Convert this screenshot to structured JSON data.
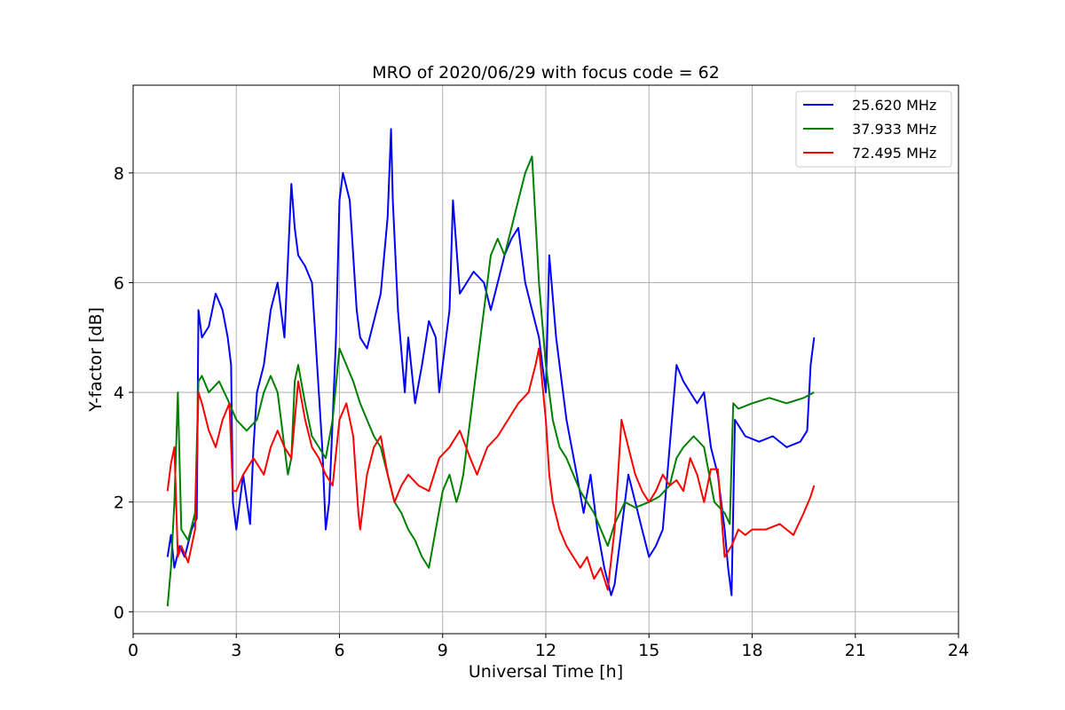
{
  "chart_data": {
    "type": "line",
    "title": "MRO of 2020/06/29 with focus code = 62",
    "xlabel": "Universal Time [h]",
    "ylabel": "Y-factor [dB]",
    "xlim": [
      0,
      24
    ],
    "ylim": [
      -0.4,
      9.6
    ],
    "xticks": [
      0,
      3,
      6,
      9,
      12,
      15,
      18,
      21,
      24
    ],
    "yticks": [
      0,
      2,
      4,
      6,
      8
    ],
    "grid": true,
    "legend_position": "top-right",
    "series": [
      {
        "name": "25.620 MHz",
        "color": "#0000ff",
        "x": [
          1.0,
          1.1,
          1.2,
          1.35,
          1.5,
          1.7,
          1.85,
          1.9,
          2.0,
          2.2,
          2.4,
          2.6,
          2.75,
          2.85,
          2.9,
          3.0,
          3.2,
          3.4,
          3.5,
          3.6,
          3.8,
          4.0,
          4.2,
          4.3,
          4.4,
          4.6,
          4.7,
          4.8,
          5.0,
          5.2,
          5.3,
          5.5,
          5.6,
          5.7,
          5.8,
          5.9,
          6.0,
          6.1,
          6.3,
          6.5,
          6.6,
          6.8,
          7.0,
          7.2,
          7.4,
          7.5,
          7.55,
          7.7,
          7.9,
          8.0,
          8.2,
          8.4,
          8.6,
          8.8,
          8.9,
          9.0,
          9.2,
          9.3,
          9.5,
          9.7,
          9.9,
          10.2,
          10.4,
          10.6,
          10.8,
          11.0,
          11.2,
          11.4,
          11.6,
          11.8,
          12.0,
          12.1,
          12.3,
          12.6,
          12.9,
          13.1,
          13.3,
          13.5,
          13.7,
          13.9,
          14.0,
          14.2,
          14.4,
          14.6,
          14.8,
          15.0,
          15.2,
          15.4,
          15.6,
          15.8,
          16.0,
          16.2,
          16.4,
          16.6,
          16.8,
          17.0,
          17.2,
          17.3,
          17.4,
          17.5,
          17.8,
          18.2,
          18.6,
          19.0,
          19.4,
          19.6,
          19.7,
          19.8
        ],
        "y": [
          1.0,
          1.4,
          0.8,
          1.2,
          1.0,
          1.5,
          1.7,
          5.5,
          5.0,
          5.2,
          5.8,
          5.5,
          5.0,
          4.5,
          2.0,
          1.5,
          2.5,
          1.6,
          3.0,
          4.0,
          4.5,
          5.5,
          6.0,
          5.5,
          5.0,
          7.8,
          7.0,
          6.5,
          6.3,
          6.0,
          5.0,
          3.0,
          1.5,
          2.0,
          3.5,
          5.0,
          7.5,
          8.0,
          7.5,
          5.5,
          5.0,
          4.8,
          5.3,
          5.8,
          7.2,
          8.8,
          7.5,
          5.5,
          4.0,
          5.0,
          3.8,
          4.5,
          5.3,
          5.0,
          4.0,
          4.5,
          5.5,
          7.5,
          5.8,
          6.0,
          6.2,
          6.0,
          5.5,
          6.0,
          6.5,
          6.8,
          7.0,
          6.0,
          5.5,
          5.0,
          4.0,
          6.5,
          5.0,
          3.5,
          2.5,
          1.8,
          2.5,
          1.5,
          0.8,
          0.3,
          0.5,
          1.5,
          2.5,
          2.0,
          1.5,
          1.0,
          1.2,
          1.5,
          3.0,
          4.5,
          4.2,
          4.0,
          3.8,
          4.0,
          3.0,
          2.5,
          1.5,
          0.8,
          0.3,
          3.5,
          3.2,
          3.1,
          3.2,
          3.0,
          3.1,
          3.3,
          4.5,
          5.0
        ]
      },
      {
        "name": "37.933 MHz",
        "color": "#008000",
        "x": [
          1.0,
          1.1,
          1.2,
          1.3,
          1.4,
          1.6,
          1.8,
          1.9,
          2.0,
          2.2,
          2.5,
          2.8,
          3.0,
          3.3,
          3.6,
          3.8,
          4.0,
          4.2,
          4.4,
          4.5,
          4.6,
          4.7,
          4.8,
          5.0,
          5.2,
          5.4,
          5.6,
          5.8,
          6.0,
          6.2,
          6.4,
          6.6,
          6.8,
          7.0,
          7.2,
          7.4,
          7.6,
          7.8,
          8.0,
          8.2,
          8.4,
          8.6,
          8.8,
          9.0,
          9.2,
          9.4,
          9.5,
          9.6,
          9.8,
          10.0,
          10.2,
          10.4,
          10.6,
          10.8,
          11.0,
          11.2,
          11.4,
          11.6,
          11.8,
          12.0,
          12.2,
          12.4,
          12.6,
          12.8,
          13.0,
          13.2,
          13.4,
          13.6,
          13.8,
          14.0,
          14.3,
          14.6,
          15.0,
          15.3,
          15.6,
          15.8,
          16.0,
          16.3,
          16.6,
          16.9,
          17.2,
          17.35,
          17.45,
          17.6,
          18.0,
          18.5,
          19.0,
          19.5,
          19.8
        ],
        "y": [
          0.1,
          0.8,
          2.0,
          4.0,
          1.5,
          1.3,
          1.8,
          4.2,
          4.3,
          4.0,
          4.2,
          3.8,
          3.5,
          3.3,
          3.5,
          4.0,
          4.3,
          4.0,
          3.0,
          2.5,
          2.8,
          4.2,
          4.5,
          3.8,
          3.2,
          3.0,
          2.8,
          3.5,
          4.8,
          4.5,
          4.2,
          3.8,
          3.5,
          3.2,
          3.0,
          2.5,
          2.0,
          1.8,
          1.5,
          1.3,
          1.0,
          0.8,
          1.5,
          2.2,
          2.5,
          2.0,
          2.2,
          2.5,
          3.5,
          4.5,
          5.5,
          6.5,
          6.8,
          6.5,
          7.0,
          7.5,
          8.0,
          8.3,
          6.0,
          4.5,
          3.5,
          3.0,
          2.8,
          2.5,
          2.2,
          2.0,
          1.8,
          1.5,
          1.2,
          1.6,
          2.0,
          1.9,
          2.0,
          2.1,
          2.3,
          2.8,
          3.0,
          3.2,
          3.0,
          2.0,
          1.8,
          1.6,
          3.8,
          3.7,
          3.8,
          3.9,
          3.8,
          3.9,
          4.0
        ]
      },
      {
        "name": "72.495 MHz",
        "color": "#ff0000",
        "x": [
          1.0,
          1.1,
          1.2,
          1.3,
          1.4,
          1.6,
          1.8,
          1.9,
          2.0,
          2.2,
          2.4,
          2.6,
          2.8,
          2.9,
          3.0,
          3.2,
          3.5,
          3.8,
          4.0,
          4.2,
          4.4,
          4.6,
          4.7,
          4.8,
          5.0,
          5.2,
          5.4,
          5.6,
          5.8,
          6.0,
          6.2,
          6.4,
          6.55,
          6.6,
          6.8,
          7.0,
          7.2,
          7.4,
          7.6,
          7.8,
          8.0,
          8.3,
          8.6,
          8.9,
          9.2,
          9.5,
          9.8,
          10.0,
          10.3,
          10.6,
          10.9,
          11.2,
          11.5,
          11.7,
          11.8,
          12.0,
          12.1,
          12.2,
          12.4,
          12.6,
          12.8,
          13.0,
          13.2,
          13.4,
          13.6,
          13.8,
          14.0,
          14.2,
          14.4,
          14.6,
          14.8,
          15.0,
          15.2,
          15.4,
          15.6,
          15.8,
          16.0,
          16.2,
          16.4,
          16.6,
          16.8,
          17.0,
          17.2,
          17.4,
          17.6,
          17.8,
          18.0,
          18.4,
          18.8,
          19.2,
          19.5,
          19.7,
          19.8
        ],
        "y": [
          2.2,
          2.7,
          3.0,
          1.0,
          1.2,
          0.9,
          1.5,
          4.0,
          3.8,
          3.3,
          3.0,
          3.5,
          3.8,
          2.2,
          2.2,
          2.5,
          2.8,
          2.5,
          3.0,
          3.3,
          3.0,
          2.8,
          3.5,
          4.2,
          3.5,
          3.0,
          2.8,
          2.5,
          2.3,
          3.5,
          3.8,
          3.2,
          1.8,
          1.5,
          2.5,
          3.0,
          3.2,
          2.5,
          2.0,
          2.3,
          2.5,
          2.3,
          2.2,
          2.8,
          3.0,
          3.3,
          2.8,
          2.5,
          3.0,
          3.2,
          3.5,
          3.8,
          4.0,
          4.5,
          4.8,
          3.5,
          2.5,
          2.0,
          1.5,
          1.2,
          1.0,
          0.8,
          1.0,
          0.6,
          0.8,
          0.4,
          1.5,
          3.5,
          3.0,
          2.5,
          2.2,
          2.0,
          2.2,
          2.5,
          2.3,
          2.4,
          2.2,
          2.8,
          2.5,
          2.0,
          2.6,
          2.6,
          1.0,
          1.2,
          1.5,
          1.4,
          1.5,
          1.5,
          1.6,
          1.4,
          1.8,
          2.1,
          2.3
        ]
      }
    ]
  }
}
